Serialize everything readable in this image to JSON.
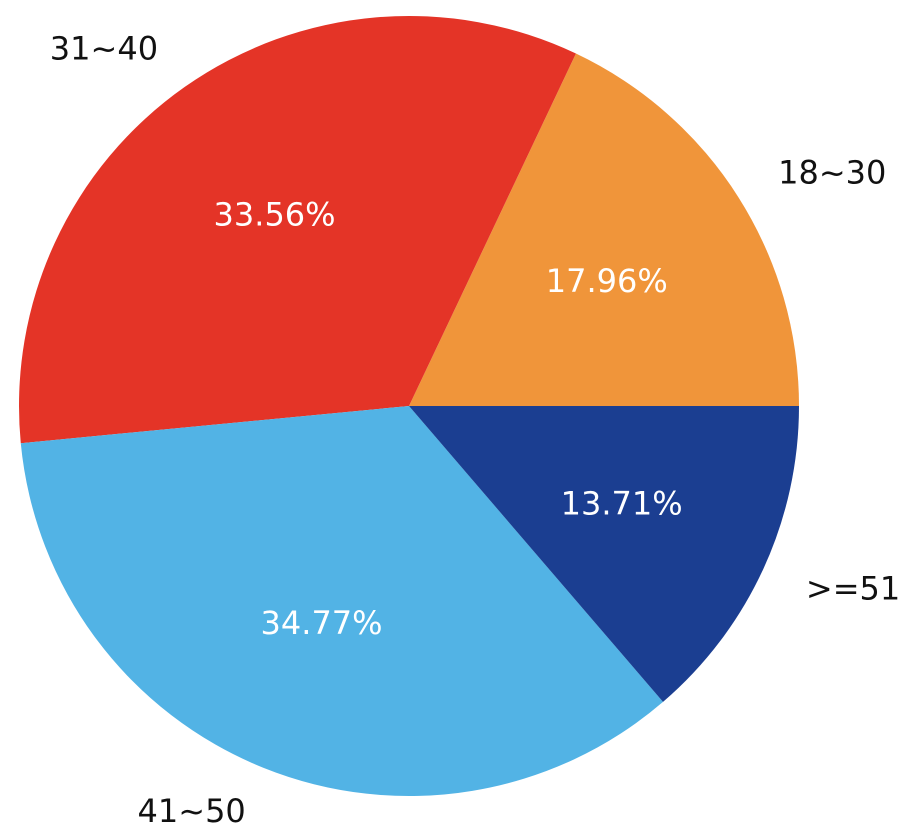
{
  "chart_data": {
    "type": "pie",
    "start_angle_deg": 0,
    "direction": "counterclockwise",
    "slices": [
      {
        "label": "18~30",
        "value": 17.96,
        "pct_text": "17.96%",
        "color": "#F0953A"
      },
      {
        "label": "31~40",
        "value": 33.56,
        "pct_text": "33.56%",
        "color": "#E43427"
      },
      {
        "label": "41~50",
        "value": 34.77,
        "pct_text": "34.77%",
        "color": "#52B3E5"
      },
      {
        "label": ">=51",
        "value": 13.71,
        "pct_text": "13.71%",
        "color": "#1B3E91"
      }
    ]
  }
}
